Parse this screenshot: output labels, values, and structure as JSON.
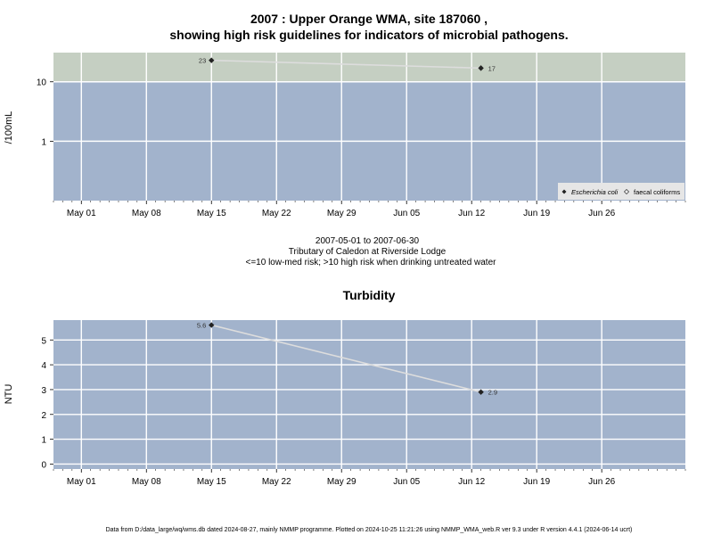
{
  "colors": {
    "panel_bg": "#a2b3cc",
    "high_risk_band": "#c5cfc2",
    "grid": "#ffffff",
    "line": "#dddddd",
    "marker": "#222222"
  },
  "chart_data": [
    {
      "type": "line",
      "title_line1": "2007 : Upper Orange WMA, site 187060 ,",
      "title_line2": "showing high risk guidelines for indicators of microbial pathogens.",
      "ylabel": "/100mL",
      "y_scale": "log",
      "ylim": [
        0.1,
        31
      ],
      "y_ticks": [
        1,
        10
      ],
      "y_tick_labels": [
        "1",
        "10"
      ],
      "xlim": [
        "2007-04-28",
        "2007-07-05"
      ],
      "x_ticks": [
        "2007-05-01",
        "2007-05-08",
        "2007-05-15",
        "2007-05-22",
        "2007-05-29",
        "2007-06-05",
        "2007-06-12",
        "2007-06-19",
        "2007-06-26"
      ],
      "x_tick_labels": [
        "May 01",
        "May 08",
        "May 15",
        "May 22",
        "May 29",
        "Jun 05",
        "Jun 12",
        "Jun 19",
        "Jun 26"
      ],
      "high_risk_threshold": 10,
      "grid": true,
      "series": [
        {
          "name": "Escherichia coli",
          "marker": "filled-diamond",
          "points": [
            {
              "x": "2007-05-15",
              "y": 23,
              "label": "23"
            },
            {
              "x": "2007-06-13",
              "y": 17,
              "label": "17"
            }
          ]
        }
      ],
      "legend": {
        "placement": "bottom-right",
        "entries": [
          {
            "label": "Escherichia coli",
            "marker": "filled-diamond",
            "italic": true
          },
          {
            "label": "faecal coliforms",
            "marker": "open-diamond",
            "italic": false
          }
        ]
      },
      "annotations": [
        "2007-05-01 to 2007-06-30",
        "Tributary of Caledon at Riverside Lodge",
        "<=10 low-med risk; >10 high risk when drinking untreated water"
      ]
    },
    {
      "type": "line",
      "title": "Turbidity",
      "ylabel": "NTU",
      "y_scale": "linear",
      "ylim": [
        -0.2,
        5.8
      ],
      "y_ticks": [
        0,
        1,
        2,
        3,
        4,
        5
      ],
      "y_tick_labels": [
        "0",
        "1",
        "2",
        "3",
        "4",
        "5"
      ],
      "xlim": [
        "2007-04-28",
        "2007-07-05"
      ],
      "x_ticks": [
        "2007-05-01",
        "2007-05-08",
        "2007-05-15",
        "2007-05-22",
        "2007-05-29",
        "2007-06-05",
        "2007-06-12",
        "2007-06-19",
        "2007-06-26"
      ],
      "x_tick_labels": [
        "May 01",
        "May 08",
        "May 15",
        "May 22",
        "May 29",
        "Jun 05",
        "Jun 12",
        "Jun 19",
        "Jun 26"
      ],
      "grid": true,
      "series": [
        {
          "marker": "filled-diamond",
          "points": [
            {
              "x": "2007-05-15",
              "y": 5.6,
              "label": "5.6"
            },
            {
              "x": "2007-06-13",
              "y": 2.9,
              "label": "2.9"
            }
          ]
        }
      ]
    }
  ],
  "footer": "Data from D:/data_large/wq/wms.db dated 2024-08-27, mainly NMMP programme. Plotted on 2024-10-25 11:21:26 using NMMP_WMA_web.R ver 9.3 under R version 4.4.1 (2024-06-14 ucrt)"
}
